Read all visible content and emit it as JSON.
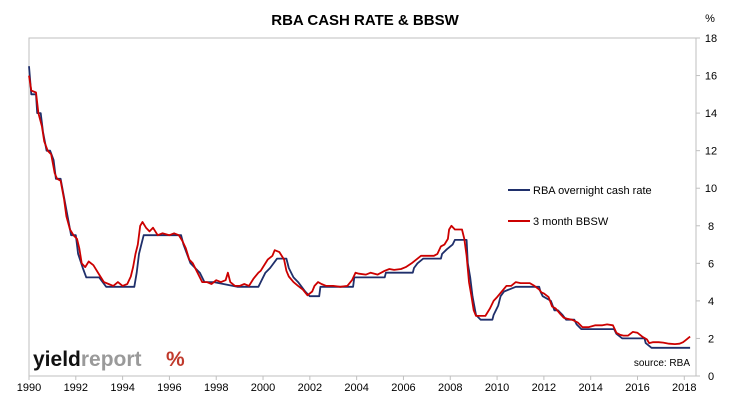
{
  "chart_data": {
    "type": "line",
    "title": "RBA CASH RATE & BBSW",
    "ylabel": "%",
    "xlabel": "",
    "xlim": [
      1990,
      2018.5
    ],
    "ylim": [
      0,
      18
    ],
    "x_ticks": [
      "1990",
      "1992",
      "1994",
      "1996",
      "1998",
      "2000",
      "2002",
      "2004",
      "2006",
      "2008",
      "2010",
      "2012",
      "2014",
      "2016",
      "2018"
    ],
    "y_ticks": [
      "0",
      "2",
      "4",
      "6",
      "8",
      "10",
      "12",
      "14",
      "16",
      "18"
    ],
    "y_axis_side": "right",
    "grid": false,
    "legend_position": "center-right",
    "source": "source: RBA",
    "series": [
      {
        "name": "RBA overnight cash rate",
        "color": "#1f2f6b",
        "points": [
          [
            1990.0,
            16.5
          ],
          [
            1990.1,
            15.0
          ],
          [
            1990.3,
            15.0
          ],
          [
            1990.35,
            14.0
          ],
          [
            1990.5,
            14.0
          ],
          [
            1990.6,
            13.0
          ],
          [
            1990.75,
            12.0
          ],
          [
            1990.9,
            12.0
          ],
          [
            1991.05,
            11.5
          ],
          [
            1991.15,
            10.5
          ],
          [
            1991.35,
            10.5
          ],
          [
            1991.5,
            9.5
          ],
          [
            1991.65,
            8.5
          ],
          [
            1991.8,
            7.5
          ],
          [
            1992.0,
            7.5
          ],
          [
            1992.1,
            6.5
          ],
          [
            1992.3,
            5.75
          ],
          [
            1992.45,
            5.25
          ],
          [
            1993.0,
            5.25
          ],
          [
            1993.3,
            4.75
          ],
          [
            1994.5,
            4.75
          ],
          [
            1994.6,
            5.5
          ],
          [
            1994.7,
            6.5
          ],
          [
            1994.8,
            7.0
          ],
          [
            1994.9,
            7.5
          ],
          [
            1995.0,
            7.5
          ],
          [
            1996.5,
            7.5
          ],
          [
            1996.6,
            7.0
          ],
          [
            1996.9,
            6.0
          ],
          [
            1997.3,
            5.5
          ],
          [
            1997.5,
            5.0
          ],
          [
            1997.9,
            5.0
          ],
          [
            1998.9,
            4.75
          ],
          [
            1999.8,
            4.75
          ],
          [
            1999.9,
            5.0
          ],
          [
            2000.1,
            5.5
          ],
          [
            2000.3,
            5.75
          ],
          [
            2000.6,
            6.25
          ],
          [
            2001.0,
            6.25
          ],
          [
            2001.1,
            5.75
          ],
          [
            2001.3,
            5.25
          ],
          [
            2001.5,
            5.0
          ],
          [
            2001.8,
            4.5
          ],
          [
            2002.0,
            4.25
          ],
          [
            2002.4,
            4.25
          ],
          [
            2002.45,
            4.75
          ],
          [
            2003.85,
            4.75
          ],
          [
            2003.9,
            5.25
          ],
          [
            2005.2,
            5.25
          ],
          [
            2005.25,
            5.5
          ],
          [
            2006.4,
            5.5
          ],
          [
            2006.45,
            5.75
          ],
          [
            2006.6,
            6.0
          ],
          [
            2006.85,
            6.25
          ],
          [
            2007.6,
            6.25
          ],
          [
            2007.65,
            6.5
          ],
          [
            2007.85,
            6.75
          ],
          [
            2008.1,
            7.0
          ],
          [
            2008.2,
            7.25
          ],
          [
            2008.7,
            7.25
          ],
          [
            2008.75,
            6.0
          ],
          [
            2008.85,
            5.25
          ],
          [
            2008.95,
            4.25
          ],
          [
            2009.1,
            3.25
          ],
          [
            2009.3,
            3.0
          ],
          [
            2009.8,
            3.0
          ],
          [
            2009.85,
            3.25
          ],
          [
            2009.95,
            3.5
          ],
          [
            2010.05,
            3.75
          ],
          [
            2010.15,
            4.25
          ],
          [
            2010.3,
            4.5
          ],
          [
            2010.8,
            4.75
          ],
          [
            2011.8,
            4.75
          ],
          [
            2011.85,
            4.5
          ],
          [
            2011.95,
            4.25
          ],
          [
            2012.3,
            4.0
          ],
          [
            2012.45,
            3.5
          ],
          [
            2012.6,
            3.5
          ],
          [
            2012.8,
            3.25
          ],
          [
            2012.95,
            3.0
          ],
          [
            2013.3,
            3.0
          ],
          [
            2013.4,
            2.75
          ],
          [
            2013.6,
            2.5
          ],
          [
            2015.0,
            2.5
          ],
          [
            2015.1,
            2.25
          ],
          [
            2015.35,
            2.0
          ],
          [
            2016.3,
            2.0
          ],
          [
            2016.35,
            1.75
          ],
          [
            2016.6,
            1.5
          ],
          [
            2018.25,
            1.5
          ]
        ]
      },
      {
        "name": "3 month BBSW",
        "color": "#cc0000",
        "points": [
          [
            1990.0,
            16.0
          ],
          [
            1990.1,
            15.2
          ],
          [
            1990.3,
            15.1
          ],
          [
            1990.4,
            14.0
          ],
          [
            1990.55,
            13.3
          ],
          [
            1990.65,
            12.5
          ],
          [
            1990.8,
            12.0
          ],
          [
            1990.95,
            11.8
          ],
          [
            1991.1,
            10.8
          ],
          [
            1991.2,
            10.5
          ],
          [
            1991.35,
            10.4
          ],
          [
            1991.5,
            9.4
          ],
          [
            1991.6,
            8.5
          ],
          [
            1991.75,
            7.8
          ],
          [
            1991.9,
            7.5
          ],
          [
            1992.05,
            7.3
          ],
          [
            1992.15,
            6.8
          ],
          [
            1992.25,
            6.0
          ],
          [
            1992.4,
            5.8
          ],
          [
            1992.55,
            6.1
          ],
          [
            1992.75,
            5.9
          ],
          [
            1993.0,
            5.4
          ],
          [
            1993.2,
            5.0
          ],
          [
            1993.4,
            4.9
          ],
          [
            1993.6,
            4.8
          ],
          [
            1993.8,
            5.0
          ],
          [
            1994.0,
            4.8
          ],
          [
            1994.2,
            4.9
          ],
          [
            1994.35,
            5.3
          ],
          [
            1994.45,
            5.8
          ],
          [
            1994.55,
            6.5
          ],
          [
            1994.65,
            7.0
          ],
          [
            1994.75,
            8.0
          ],
          [
            1994.85,
            8.2
          ],
          [
            1995.0,
            7.9
          ],
          [
            1995.15,
            7.7
          ],
          [
            1995.3,
            7.9
          ],
          [
            1995.5,
            7.5
          ],
          [
            1995.7,
            7.6
          ],
          [
            1996.0,
            7.5
          ],
          [
            1996.2,
            7.6
          ],
          [
            1996.4,
            7.5
          ],
          [
            1996.55,
            7.2
          ],
          [
            1996.7,
            6.8
          ],
          [
            1996.85,
            6.2
          ],
          [
            1997.0,
            6.0
          ],
          [
            1997.2,
            5.5
          ],
          [
            1997.4,
            5.0
          ],
          [
            1997.6,
            5.0
          ],
          [
            1997.8,
            4.9
          ],
          [
            1998.0,
            5.1
          ],
          [
            1998.2,
            5.0
          ],
          [
            1998.4,
            5.1
          ],
          [
            1998.5,
            5.5
          ],
          [
            1998.6,
            5.0
          ],
          [
            1998.8,
            4.8
          ],
          [
            1999.0,
            4.8
          ],
          [
            1999.2,
            4.9
          ],
          [
            1999.4,
            4.8
          ],
          [
            1999.6,
            5.2
          ],
          [
            1999.8,
            5.5
          ],
          [
            1999.9,
            5.6
          ],
          [
            2000.0,
            5.8
          ],
          [
            2000.2,
            6.2
          ],
          [
            2000.4,
            6.4
          ],
          [
            2000.5,
            6.7
          ],
          [
            2000.7,
            6.6
          ],
          [
            2000.9,
            6.2
          ],
          [
            2001.0,
            5.6
          ],
          [
            2001.1,
            5.3
          ],
          [
            2001.3,
            5.0
          ],
          [
            2001.5,
            4.8
          ],
          [
            2001.7,
            4.6
          ],
          [
            2001.9,
            4.3
          ],
          [
            2002.1,
            4.5
          ],
          [
            2002.2,
            4.8
          ],
          [
            2002.35,
            5.0
          ],
          [
            2002.5,
            4.9
          ],
          [
            2002.7,
            4.8
          ],
          [
            2003.0,
            4.8
          ],
          [
            2003.3,
            4.75
          ],
          [
            2003.6,
            4.8
          ],
          [
            2003.8,
            5.1
          ],
          [
            2003.95,
            5.5
          ],
          [
            2004.1,
            5.45
          ],
          [
            2004.4,
            5.4
          ],
          [
            2004.6,
            5.5
          ],
          [
            2004.9,
            5.4
          ],
          [
            2005.2,
            5.6
          ],
          [
            2005.4,
            5.7
          ],
          [
            2005.6,
            5.65
          ],
          [
            2005.9,
            5.7
          ],
          [
            2006.1,
            5.8
          ],
          [
            2006.35,
            6.0
          ],
          [
            2006.55,
            6.2
          ],
          [
            2006.75,
            6.4
          ],
          [
            2006.9,
            6.4
          ],
          [
            2007.1,
            6.4
          ],
          [
            2007.3,
            6.4
          ],
          [
            2007.45,
            6.5
          ],
          [
            2007.6,
            6.9
          ],
          [
            2007.75,
            7.0
          ],
          [
            2007.9,
            7.3
          ],
          [
            2007.95,
            7.8
          ],
          [
            2008.05,
            8.0
          ],
          [
            2008.2,
            7.8
          ],
          [
            2008.5,
            7.8
          ],
          [
            2008.6,
            7.3
          ],
          [
            2008.7,
            6.4
          ],
          [
            2008.8,
            5.0
          ],
          [
            2008.9,
            4.3
          ],
          [
            2009.0,
            3.5
          ],
          [
            2009.1,
            3.2
          ],
          [
            2009.3,
            3.2
          ],
          [
            2009.5,
            3.2
          ],
          [
            2009.7,
            3.6
          ],
          [
            2009.85,
            4.0
          ],
          [
            2010.0,
            4.2
          ],
          [
            2010.2,
            4.5
          ],
          [
            2010.4,
            4.8
          ],
          [
            2010.6,
            4.8
          ],
          [
            2010.8,
            5.0
          ],
          [
            2011.0,
            4.95
          ],
          [
            2011.2,
            4.95
          ],
          [
            2011.4,
            4.95
          ],
          [
            2011.6,
            4.8
          ],
          [
            2011.8,
            4.6
          ],
          [
            2011.9,
            4.45
          ],
          [
            2012.0,
            4.4
          ],
          [
            2012.2,
            4.2
          ],
          [
            2012.35,
            3.7
          ],
          [
            2012.5,
            3.6
          ],
          [
            2012.7,
            3.3
          ],
          [
            2012.85,
            3.1
          ],
          [
            2013.0,
            3.05
          ],
          [
            2013.2,
            3.0
          ],
          [
            2013.45,
            2.85
          ],
          [
            2013.65,
            2.6
          ],
          [
            2013.9,
            2.6
          ],
          [
            2014.2,
            2.7
          ],
          [
            2014.5,
            2.7
          ],
          [
            2014.7,
            2.75
          ],
          [
            2014.95,
            2.7
          ],
          [
            2015.1,
            2.3
          ],
          [
            2015.25,
            2.2
          ],
          [
            2015.4,
            2.15
          ],
          [
            2015.6,
            2.15
          ],
          [
            2015.8,
            2.35
          ],
          [
            2016.0,
            2.3
          ],
          [
            2016.2,
            2.1
          ],
          [
            2016.4,
            1.95
          ],
          [
            2016.5,
            1.75
          ],
          [
            2016.65,
            1.8
          ],
          [
            2016.9,
            1.8
          ],
          [
            2017.1,
            1.78
          ],
          [
            2017.35,
            1.72
          ],
          [
            2017.6,
            1.7
          ],
          [
            2017.8,
            1.72
          ],
          [
            2017.95,
            1.8
          ],
          [
            2018.05,
            1.9
          ],
          [
            2018.15,
            2.0
          ],
          [
            2018.25,
            2.1
          ]
        ]
      }
    ]
  },
  "brand": {
    "word_a": "yield",
    "word_b": "report",
    "symbol": "%"
  }
}
